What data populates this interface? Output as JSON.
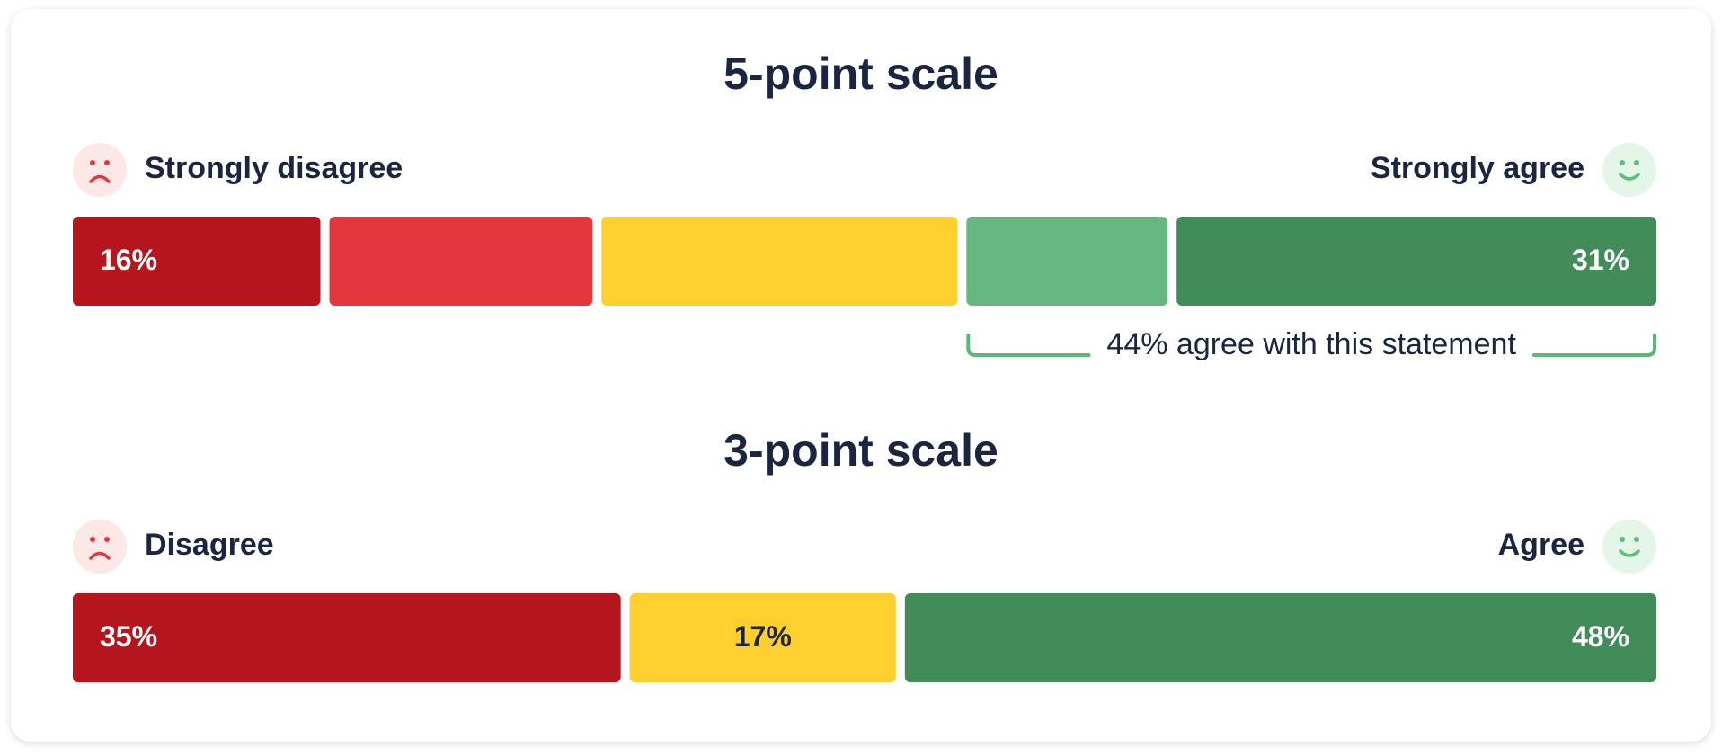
{
  "chart_data": [
    {
      "type": "bar100",
      "title": "5-point scale",
      "low_label": "Strongly disagree",
      "high_label": "Strongly agree",
      "values": [
        16,
        17,
        23,
        13,
        31
      ],
      "value_labels": [
        "16%",
        null,
        null,
        null,
        "31%"
      ],
      "colors": [
        "#b5161e",
        "#e4363d",
        "#fdcf2f",
        "#66b880",
        "#428c5a"
      ],
      "annotation": "44% agree with this statement"
    },
    {
      "type": "bar100",
      "title": "3-point scale",
      "low_label": "Disagree",
      "high_label": "Agree",
      "values": [
        35,
        17,
        48
      ],
      "value_labels": [
        "35%",
        "17%",
        "48%"
      ],
      "colors": [
        "#b5161e",
        "#fdcf2f",
        "#428c5a"
      ]
    }
  ]
}
